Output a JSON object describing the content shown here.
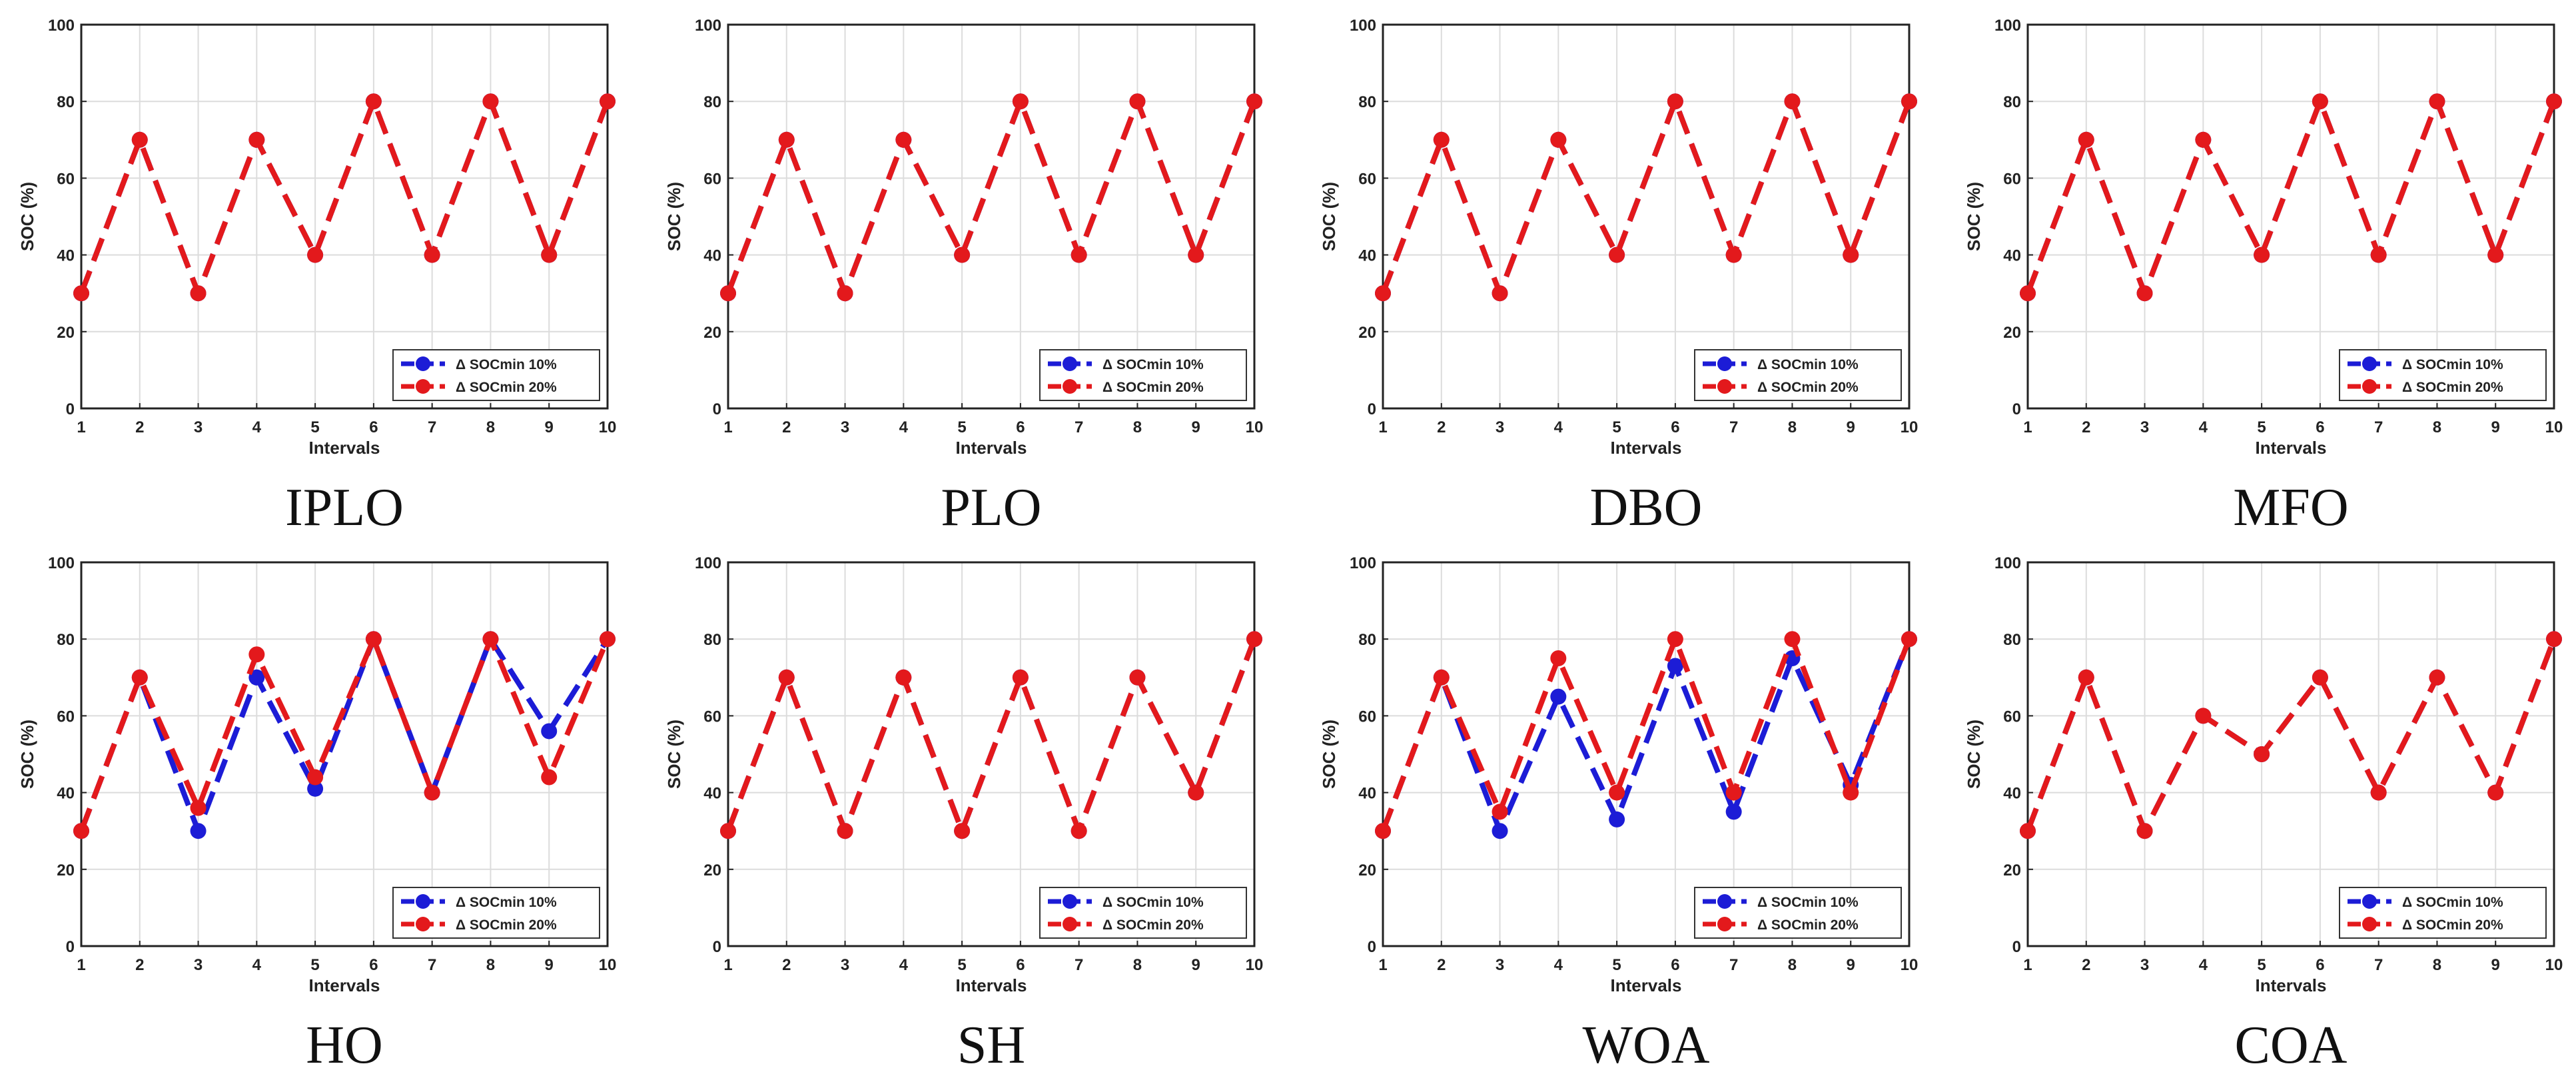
{
  "colors": {
    "series_10": "#1c1cd6",
    "series_20": "#e3191c",
    "grid": "#dcdcdc",
    "axis": "#222222"
  },
  "chart_data": [
    {
      "type": "line",
      "caption": "IPLO",
      "xlabel": "Intervals",
      "ylabel": "SOC (%)",
      "xlim": [
        1,
        10
      ],
      "ylim": [
        0,
        100
      ],
      "x": [
        1,
        2,
        3,
        4,
        5,
        6,
        7,
        8,
        9,
        10
      ],
      "xticks": [
        "1",
        "2",
        "3",
        "4",
        "5",
        "6",
        "7",
        "8",
        "9",
        "10"
      ],
      "yticks": [
        "0",
        "20",
        "40",
        "60",
        "80",
        "100"
      ],
      "grid": true,
      "legend_position": "bottom-right",
      "series": [
        {
          "name": "Δ SOCmin 10%",
          "color": "#1c1cd6",
          "values": [
            30,
            70,
            30,
            70,
            40,
            80,
            40,
            80,
            40,
            80
          ]
        },
        {
          "name": "Δ SOCmin 20%",
          "color": "#e3191c",
          "values": [
            30,
            70,
            30,
            70,
            40,
            80,
            40,
            80,
            40,
            80
          ]
        }
      ]
    },
    {
      "type": "line",
      "caption": "PLO",
      "xlabel": "Intervals",
      "ylabel": "SOC (%)",
      "xlim": [
        1,
        10
      ],
      "ylim": [
        0,
        100
      ],
      "x": [
        1,
        2,
        3,
        4,
        5,
        6,
        7,
        8,
        9,
        10
      ],
      "xticks": [
        "1",
        "2",
        "3",
        "4",
        "5",
        "6",
        "7",
        "8",
        "9",
        "10"
      ],
      "yticks": [
        "0",
        "20",
        "40",
        "60",
        "80",
        "100"
      ],
      "grid": true,
      "legend_position": "bottom-right",
      "series": [
        {
          "name": "Δ SOCmin 10%",
          "color": "#1c1cd6",
          "values": [
            30,
            70,
            30,
            70,
            40,
            80,
            40,
            80,
            40,
            80
          ]
        },
        {
          "name": "Δ SOCmin 20%",
          "color": "#e3191c",
          "values": [
            30,
            70,
            30,
            70,
            40,
            80,
            40,
            80,
            40,
            80
          ]
        }
      ]
    },
    {
      "type": "line",
      "caption": "DBO",
      "xlabel": "Intervals",
      "ylabel": "SOC (%)",
      "xlim": [
        1,
        10
      ],
      "ylim": [
        0,
        100
      ],
      "x": [
        1,
        2,
        3,
        4,
        5,
        6,
        7,
        8,
        9,
        10
      ],
      "xticks": [
        "1",
        "2",
        "3",
        "4",
        "5",
        "6",
        "7",
        "8",
        "9",
        "10"
      ],
      "yticks": [
        "0",
        "20",
        "40",
        "60",
        "80",
        "100"
      ],
      "grid": true,
      "legend_position": "bottom-right",
      "series": [
        {
          "name": "Δ SOCmin 10%",
          "color": "#1c1cd6",
          "values": [
            30,
            70,
            30,
            70,
            40,
            80,
            40,
            80,
            40,
            80
          ]
        },
        {
          "name": "Δ SOCmin 20%",
          "color": "#e3191c",
          "values": [
            30,
            70,
            30,
            70,
            40,
            80,
            40,
            80,
            40,
            80
          ]
        }
      ]
    },
    {
      "type": "line",
      "caption": "MFO",
      "xlabel": "Intervals",
      "ylabel": "SOC (%)",
      "xlim": [
        1,
        10
      ],
      "ylim": [
        0,
        100
      ],
      "x": [
        1,
        2,
        3,
        4,
        5,
        6,
        7,
        8,
        9,
        10
      ],
      "xticks": [
        "1",
        "2",
        "3",
        "4",
        "5",
        "6",
        "7",
        "8",
        "9",
        "10"
      ],
      "yticks": [
        "0",
        "20",
        "40",
        "60",
        "80",
        "100"
      ],
      "grid": true,
      "legend_position": "bottom-right",
      "series": [
        {
          "name": "Δ SOCmin 10%",
          "color": "#1c1cd6",
          "values": [
            30,
            70,
            30,
            70,
            40,
            80,
            40,
            80,
            40,
            80
          ]
        },
        {
          "name": "Δ SOCmin 20%",
          "color": "#e3191c",
          "values": [
            30,
            70,
            30,
            70,
            40,
            80,
            40,
            80,
            40,
            80
          ]
        }
      ]
    },
    {
      "type": "line",
      "caption": "HO",
      "xlabel": "Intervals",
      "ylabel": "SOC (%)",
      "xlim": [
        1,
        10
      ],
      "ylim": [
        0,
        100
      ],
      "x": [
        1,
        2,
        3,
        4,
        5,
        6,
        7,
        8,
        9,
        10
      ],
      "xticks": [
        "1",
        "2",
        "3",
        "4",
        "5",
        "6",
        "7",
        "8",
        "9",
        "10"
      ],
      "yticks": [
        "0",
        "20",
        "40",
        "60",
        "80",
        "100"
      ],
      "grid": true,
      "legend_position": "bottom-right",
      "series": [
        {
          "name": "Δ SOCmin 10%",
          "color": "#1c1cd6",
          "values": [
            30,
            70,
            30,
            70,
            41,
            80,
            40,
            80,
            56,
            80
          ]
        },
        {
          "name": "Δ SOCmin 20%",
          "color": "#e3191c",
          "values": [
            30,
            70,
            36,
            76,
            44,
            80,
            40,
            80,
            44,
            80
          ]
        }
      ]
    },
    {
      "type": "line",
      "caption": "SH",
      "xlabel": "Intervals",
      "ylabel": "SOC (%)",
      "xlim": [
        1,
        10
      ],
      "ylim": [
        0,
        100
      ],
      "x": [
        1,
        2,
        3,
        4,
        5,
        6,
        7,
        8,
        9,
        10
      ],
      "xticks": [
        "1",
        "2",
        "3",
        "4",
        "5",
        "6",
        "7",
        "8",
        "9",
        "10"
      ],
      "yticks": [
        "0",
        "20",
        "40",
        "60",
        "80",
        "100"
      ],
      "grid": true,
      "legend_position": "bottom-right",
      "series": [
        {
          "name": "Δ SOCmin 10%",
          "color": "#1c1cd6",
          "values": [
            30,
            70,
            30,
            70,
            30,
            70,
            30,
            70,
            40,
            80
          ]
        },
        {
          "name": "Δ SOCmin 20%",
          "color": "#e3191c",
          "values": [
            30,
            70,
            30,
            70,
            30,
            70,
            30,
            70,
            40,
            80
          ]
        }
      ]
    },
    {
      "type": "line",
      "caption": "WOA",
      "xlabel": "Intervals",
      "ylabel": "SOC (%)",
      "xlim": [
        1,
        10
      ],
      "ylim": [
        0,
        100
      ],
      "x": [
        1,
        2,
        3,
        4,
        5,
        6,
        7,
        8,
        9,
        10
      ],
      "xticks": [
        "1",
        "2",
        "3",
        "4",
        "5",
        "6",
        "7",
        "8",
        "9",
        "10"
      ],
      "yticks": [
        "0",
        "20",
        "40",
        "60",
        "80",
        "100"
      ],
      "grid": true,
      "legend_position": "bottom-right",
      "series": [
        {
          "name": "Δ SOCmin 10%",
          "color": "#1c1cd6",
          "values": [
            30,
            70,
            30,
            65,
            33,
            73,
            35,
            75,
            42,
            80
          ]
        },
        {
          "name": "Δ SOCmin 20%",
          "color": "#e3191c",
          "values": [
            30,
            70,
            35,
            75,
            40,
            80,
            40,
            80,
            40,
            80
          ]
        }
      ]
    },
    {
      "type": "line",
      "caption": "COA",
      "xlabel": "Intervals",
      "ylabel": "SOC (%)",
      "xlim": [
        1,
        10
      ],
      "ylim": [
        0,
        100
      ],
      "x": [
        1,
        2,
        3,
        4,
        5,
        6,
        7,
        8,
        9,
        10
      ],
      "xticks": [
        "1",
        "2",
        "3",
        "4",
        "5",
        "6",
        "7",
        "8",
        "9",
        "10"
      ],
      "yticks": [
        "0",
        "20",
        "40",
        "60",
        "80",
        "100"
      ],
      "grid": true,
      "legend_position": "bottom-right",
      "series": [
        {
          "name": "Δ SOCmin 10%",
          "color": "#1c1cd6",
          "values": [
            30,
            70,
            30,
            60,
            50,
            70,
            40,
            70,
            40,
            80
          ]
        },
        {
          "name": "Δ SOCmin 20%",
          "color": "#e3191c",
          "values": [
            30,
            70,
            30,
            60,
            50,
            70,
            40,
            70,
            40,
            80
          ]
        }
      ]
    }
  ]
}
